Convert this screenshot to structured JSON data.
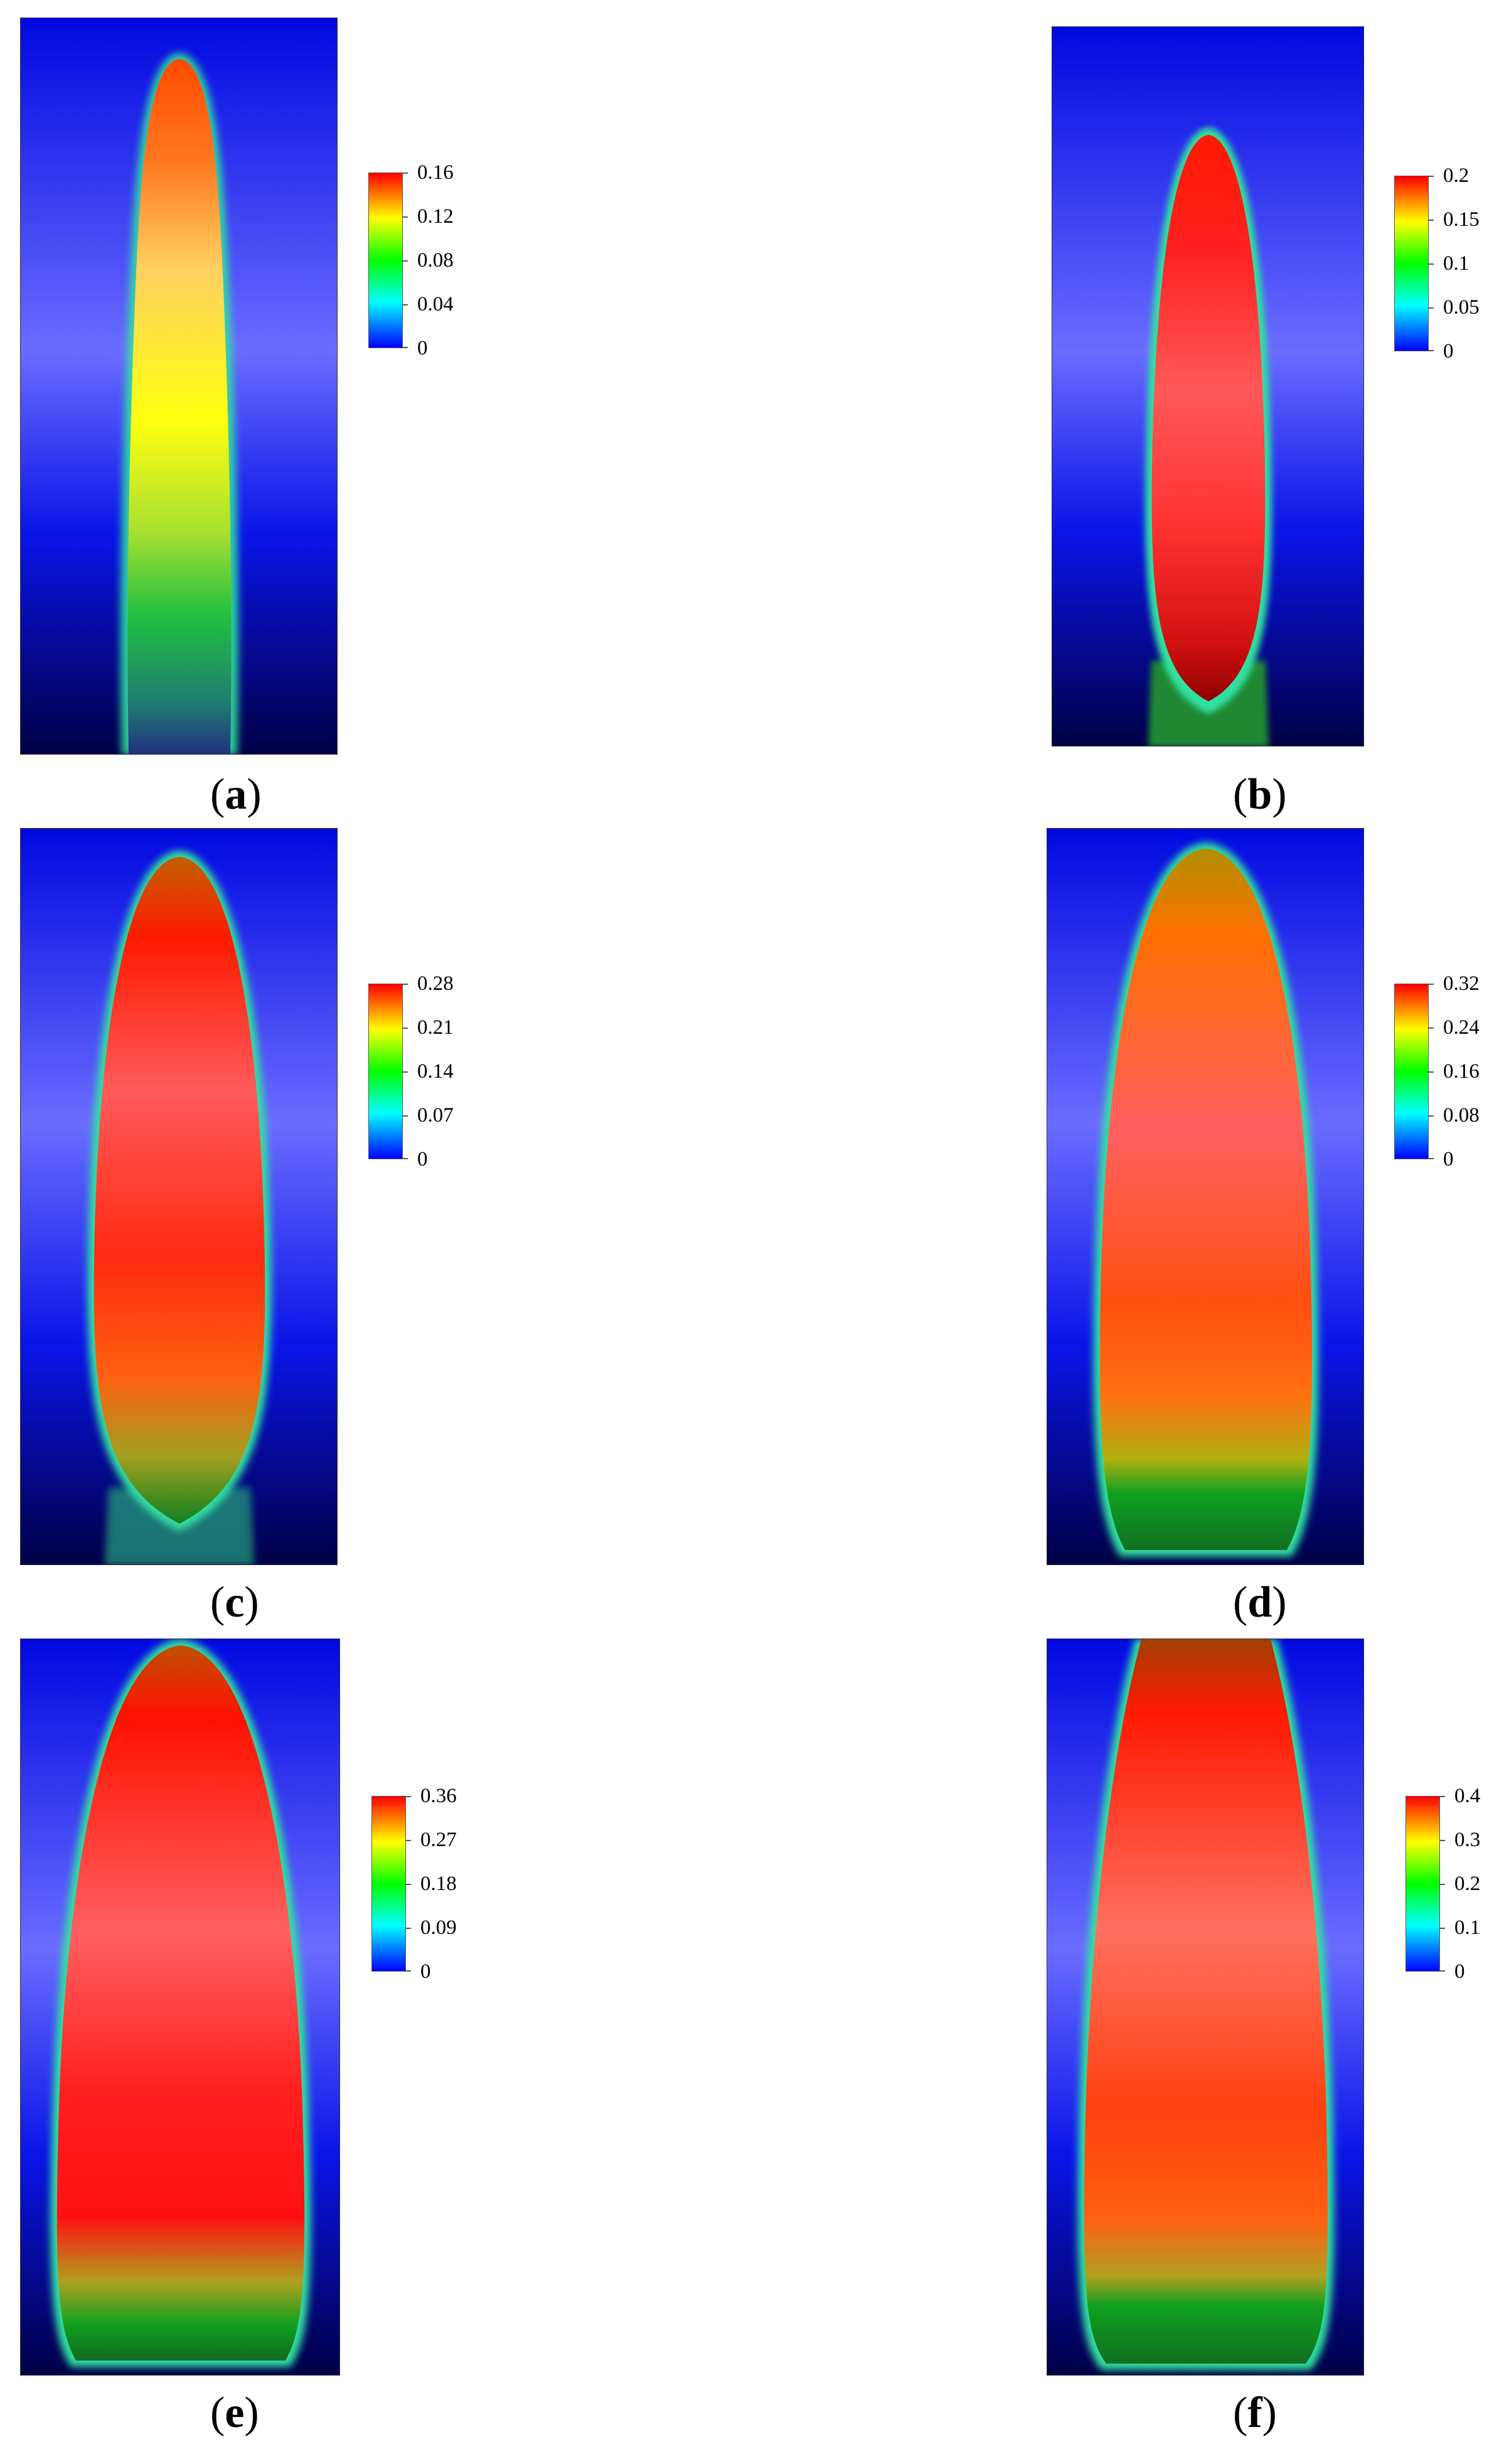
{
  "panels": [
    {
      "id": "a",
      "caption_open": "(",
      "caption_letter": "a",
      "caption_close": ")",
      "ticks": [
        "0.16",
        "0.12",
        "0.08",
        "0.04",
        "0"
      ]
    },
    {
      "id": "b",
      "caption_open": "(",
      "caption_letter": "b",
      "caption_close": ")",
      "ticks": [
        "0.2",
        "0.15",
        "0.1",
        "0.05",
        "0"
      ]
    },
    {
      "id": "c",
      "caption_open": "(",
      "caption_letter": "c",
      "caption_close": ")",
      "ticks": [
        "0.28",
        "0.21",
        "0.14",
        "0.07",
        "0"
      ]
    },
    {
      "id": "d",
      "caption_open": "(",
      "caption_letter": "d",
      "caption_close": ")",
      "ticks": [
        "0.32",
        "0.24",
        "0.16",
        "0.08",
        "0"
      ]
    },
    {
      "id": "e",
      "caption_open": "(",
      "caption_letter": "e",
      "caption_close": ")",
      "ticks": [
        "0.36",
        "0.27",
        "0.18",
        "0.09",
        "0"
      ]
    },
    {
      "id": "f",
      "caption_open": "(",
      "caption_letter": "f",
      "caption_close": ")",
      "ticks": [
        "0.4",
        "0.3",
        "0.2",
        "0.1",
        "0"
      ]
    }
  ],
  "colors": {
    "background_top": "#0008e0",
    "background_mid": "#6a6cff",
    "background_bottom": "#000045",
    "colormap": [
      "#0000ff",
      "#00ffff",
      "#00ff00",
      "#ffff00",
      "#ff0000"
    ]
  }
}
